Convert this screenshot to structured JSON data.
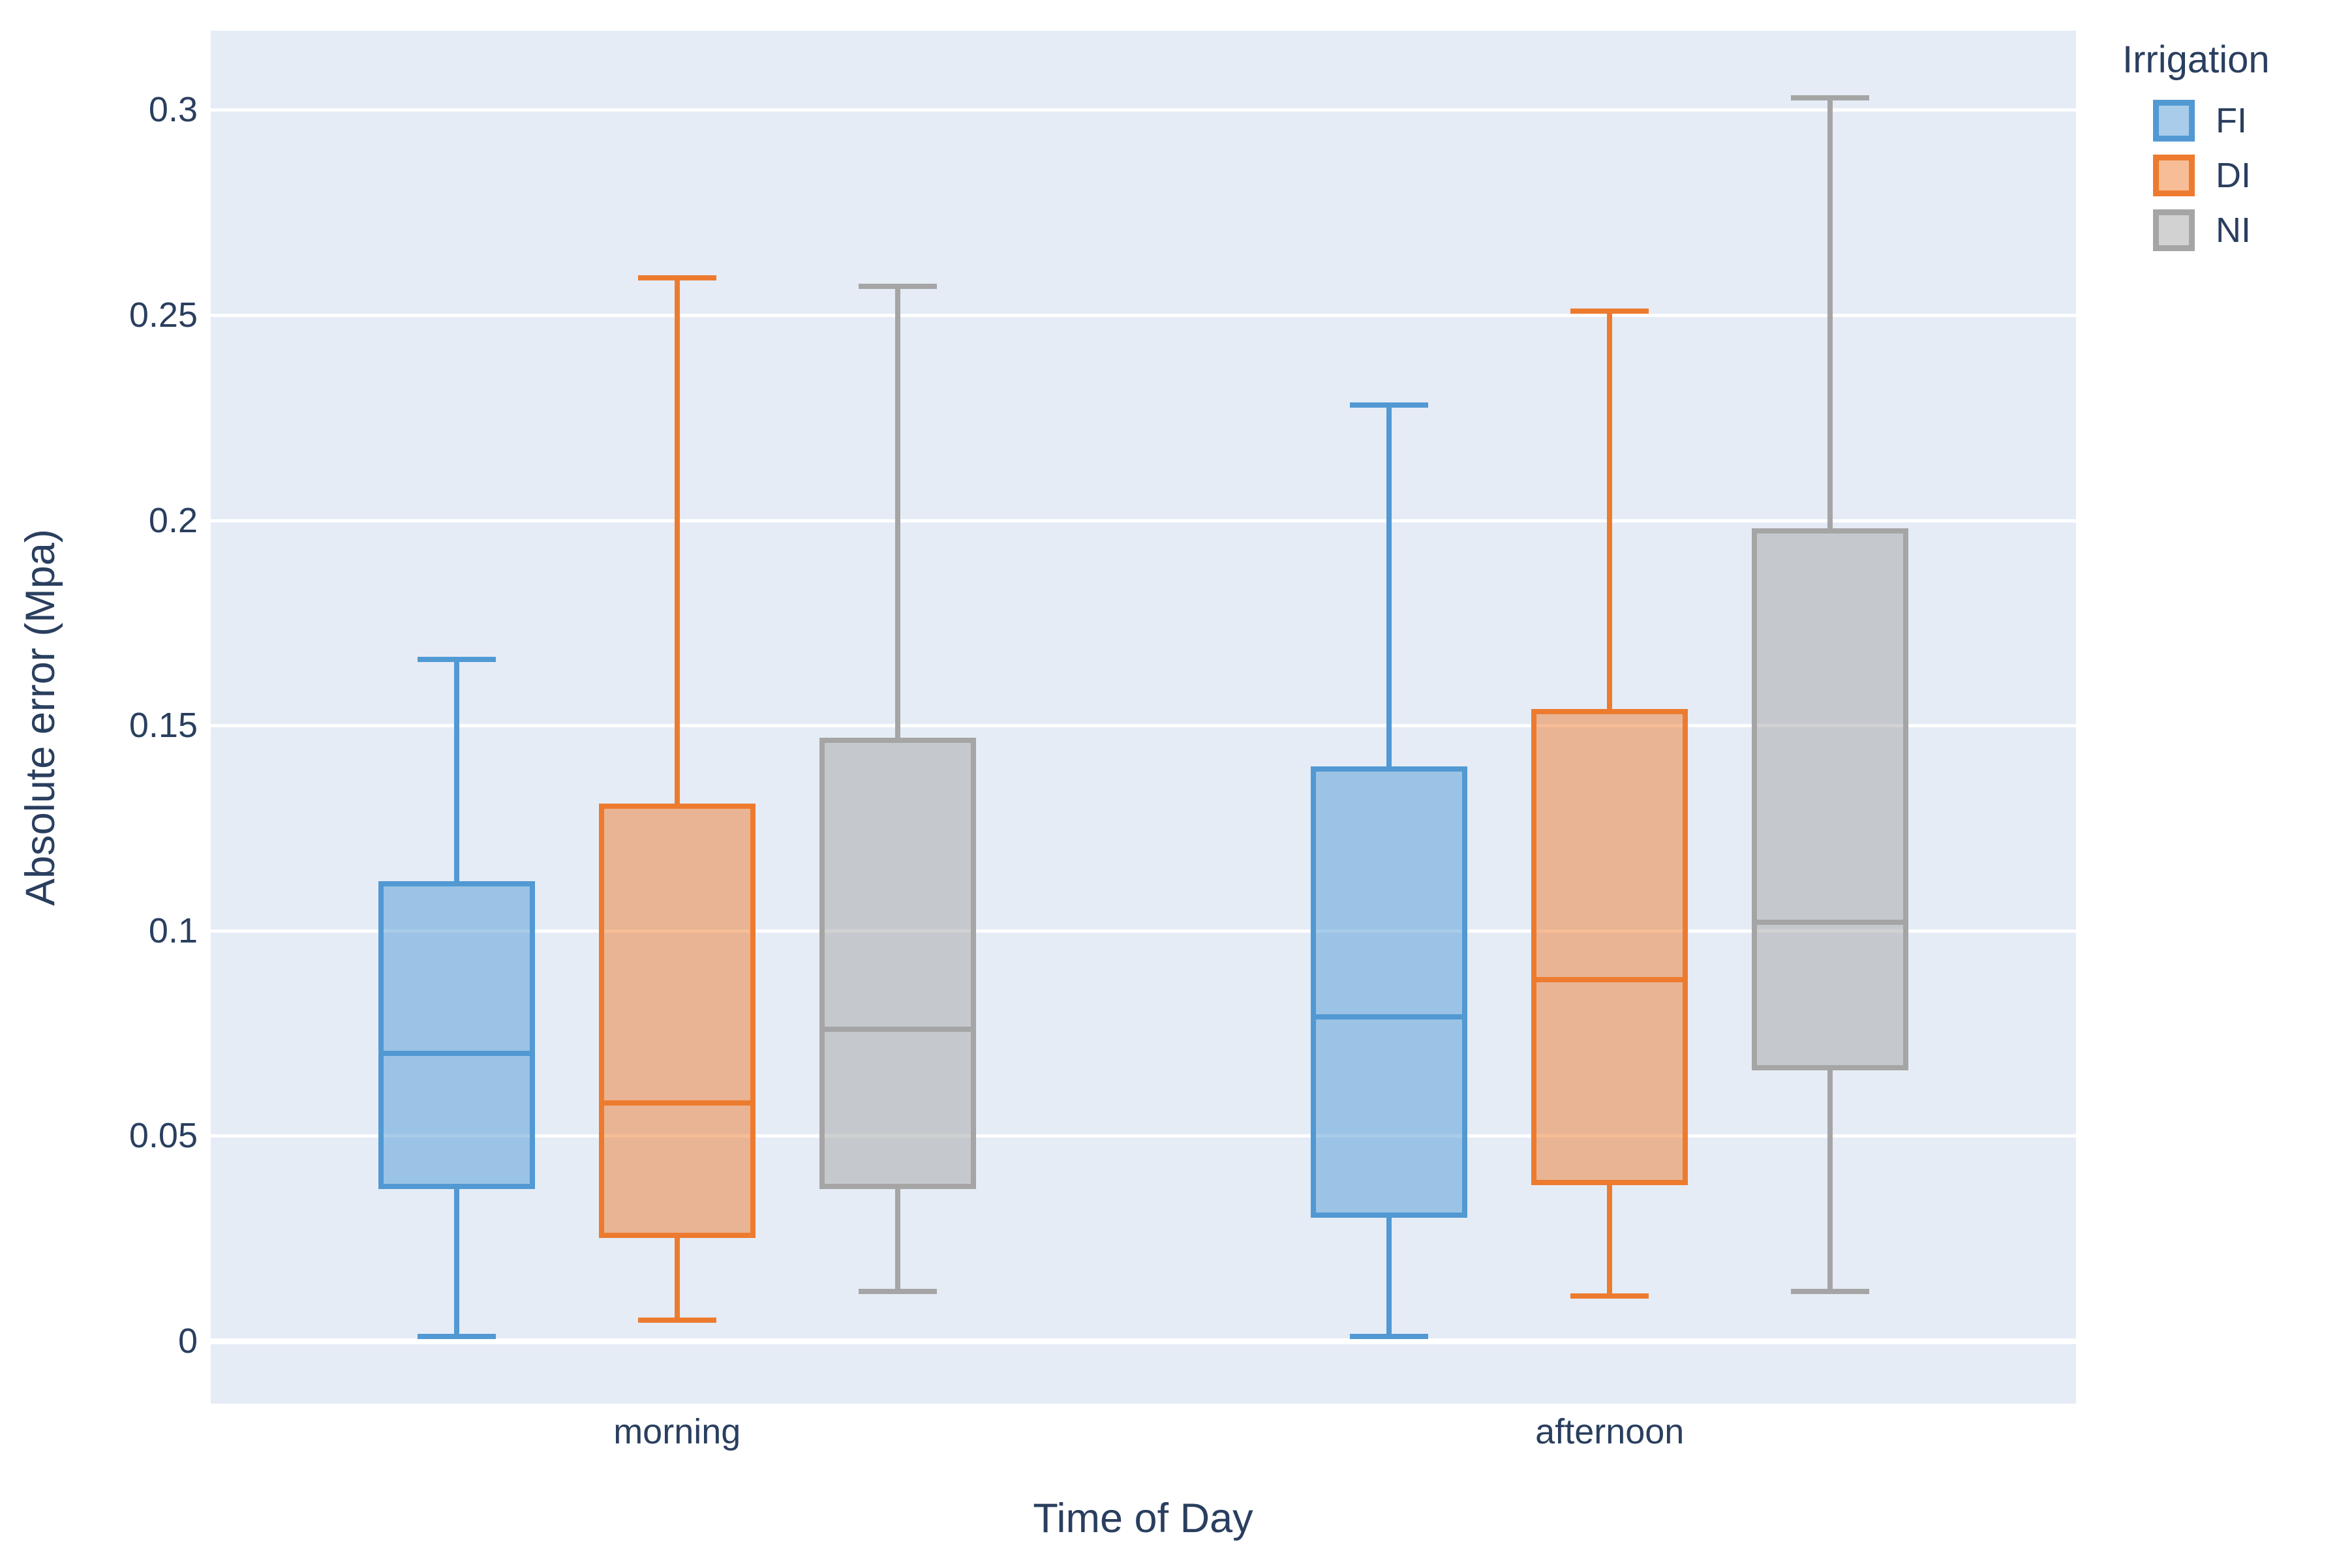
{
  "colors": {
    "page_bg": "#ffffff",
    "plot_bg": "#e5ecf6",
    "grid": "#ffffff",
    "text": "#2a3f5f"
  },
  "chart_data": {
    "type": "box",
    "title": "",
    "xlabel": "Time of Day",
    "ylabel": "Absolute error (Mpa)",
    "categories": [
      "morning",
      "afternoon"
    ],
    "legend_title": "Irrigation",
    "legend_position": "top-right-outside",
    "grid": true,
    "ylim": [
      -0.0153,
      0.3193
    ],
    "yticks": [
      0,
      0.05,
      0.1,
      0.15,
      0.2,
      0.25,
      0.3
    ],
    "ytick_labels": [
      "0",
      "0.05",
      "0.1",
      "0.15",
      "0.2",
      "0.25",
      "0.3"
    ],
    "series": [
      {
        "name": "FI",
        "color": "#5299d3",
        "boxes": [
          {
            "category": "morning",
            "min": 0.001,
            "q1": 0.037,
            "median": 0.07,
            "q3": 0.112,
            "max": 0.166
          },
          {
            "category": "afternoon",
            "min": 0.001,
            "q1": 0.03,
            "median": 0.079,
            "q3": 0.14,
            "max": 0.228
          }
        ]
      },
      {
        "name": "DI",
        "color": "#ed7b2f",
        "boxes": [
          {
            "category": "morning",
            "min": 0.005,
            "q1": 0.025,
            "median": 0.058,
            "q3": 0.131,
            "max": 0.259
          },
          {
            "category": "afternoon",
            "min": 0.011,
            "q1": 0.038,
            "median": 0.088,
            "q3": 0.154,
            "max": 0.251
          }
        ]
      },
      {
        "name": "NI",
        "color": "#a5a5a5",
        "boxes": [
          {
            "category": "morning",
            "min": 0.012,
            "q1": 0.037,
            "median": 0.076,
            "q3": 0.147,
            "max": 0.257
          },
          {
            "category": "afternoon",
            "min": 0.012,
            "q1": 0.066,
            "median": 0.102,
            "q3": 0.198,
            "max": 0.303
          }
        ]
      }
    ]
  }
}
